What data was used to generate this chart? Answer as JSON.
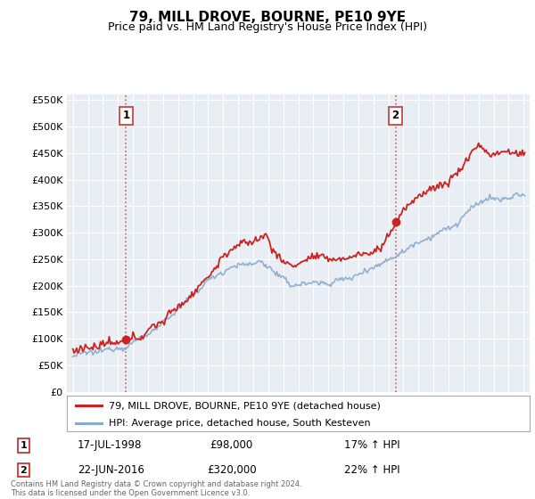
{
  "title": "79, MILL DROVE, BOURNE, PE10 9YE",
  "subtitle": "Price paid vs. HM Land Registry's House Price Index (HPI)",
  "footer": "Contains HM Land Registry data © Crown copyright and database right 2024.\nThis data is licensed under the Open Government Licence v3.0.",
  "legend_line1": "79, MILL DROVE, BOURNE, PE10 9YE (detached house)",
  "legend_line2": "HPI: Average price, detached house, South Kesteven",
  "sale1_date": "17-JUL-1998",
  "sale1_price": "£98,000",
  "sale1_hpi": "17% ↑ HPI",
  "sale2_date": "22-JUN-2016",
  "sale2_price": "£320,000",
  "sale2_hpi": "22% ↑ HPI",
  "sale1_year": 1998.54,
  "sale1_value": 98000,
  "sale2_year": 2016.47,
  "sale2_value": 320000,
  "red_color": "#cc2222",
  "blue_color": "#88aacc",
  "dotted_color": "#cc4444",
  "background_color": "#ffffff",
  "plot_bg_color": "#e8eef4",
  "grid_color": "#ffffff",
  "ylim": [
    0,
    560000
  ],
  "xlim_start": 1994.6,
  "xlim_end": 2025.4,
  "yticks": [
    0,
    50000,
    100000,
    150000,
    200000,
    250000,
    300000,
    350000,
    400000,
    450000,
    500000,
    550000
  ],
  "ytick_labels": [
    "£0",
    "£50K",
    "£100K",
    "£150K",
    "£200K",
    "£250K",
    "£300K",
    "£350K",
    "£400K",
    "£450K",
    "£500K",
    "£550K"
  ],
  "xticks": [
    1995,
    1996,
    1997,
    1998,
    1999,
    2000,
    2001,
    2002,
    2003,
    2004,
    2005,
    2006,
    2007,
    2008,
    2009,
    2010,
    2011,
    2012,
    2013,
    2014,
    2015,
    2016,
    2017,
    2018,
    2019,
    2020,
    2021,
    2022,
    2023,
    2024,
    2025
  ]
}
